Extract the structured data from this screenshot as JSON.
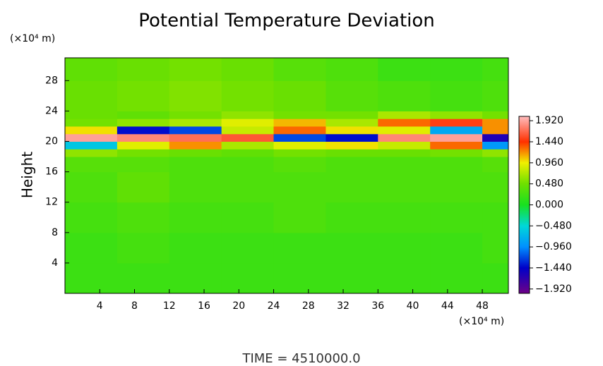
{
  "chart_data": {
    "type": "heatmap",
    "title": "Potential Temperature Deviation",
    "y_label": "Height",
    "y_unit": "(×10⁴ m)",
    "x_unit": "(×10⁴ m)",
    "footer": "TIME = 4510000.0",
    "xlim": [
      0,
      51
    ],
    "ylim": [
      0,
      31
    ],
    "xticks": [
      4,
      8,
      12,
      16,
      20,
      24,
      28,
      32,
      36,
      40,
      44,
      48
    ],
    "yticks": [
      4,
      8,
      12,
      16,
      20,
      24,
      28
    ],
    "x": [
      0,
      6,
      12,
      18,
      24,
      30,
      36,
      42,
      48,
      51
    ],
    "y": [
      0,
      4,
      8,
      12,
      16,
      18,
      19,
      20,
      21,
      22,
      23,
      24,
      28,
      31
    ],
    "z": [
      [
        0.2,
        0.2,
        0.2,
        0.2,
        0.2,
        0.2,
        0.2,
        0.2,
        0.2
      ],
      [
        0.2,
        0.25,
        0.2,
        0.2,
        0.2,
        0.2,
        0.2,
        0.2,
        0.25
      ],
      [
        0.25,
        0.3,
        0.25,
        0.25,
        0.3,
        0.25,
        0.25,
        0.25,
        0.25
      ],
      [
        0.3,
        0.4,
        0.3,
        0.3,
        0.3,
        0.3,
        0.3,
        0.3,
        0.3
      ],
      [
        0.35,
        0.35,
        0.3,
        0.3,
        0.35,
        0.3,
        0.3,
        0.3,
        0.35
      ],
      [
        0.6,
        0.5,
        0.45,
        0.4,
        0.5,
        0.45,
        0.45,
        0.5,
        0.6
      ],
      [
        -0.6,
        0.9,
        1.2,
        0.7,
        0.9,
        1.0,
        0.8,
        1.3,
        -0.9
      ],
      [
        1.9,
        1.8,
        1.7,
        1.6,
        -1.2,
        -1.4,
        1.8,
        1.9,
        -1.6
      ],
      [
        1.0,
        -1.4,
        -1.2,
        0.8,
        1.3,
        1.0,
        0.9,
        -0.8,
        1.2
      ],
      [
        0.5,
        0.6,
        0.7,
        0.9,
        1.1,
        0.7,
        1.3,
        1.5,
        1.2
      ],
      [
        0.45,
        0.4,
        0.5,
        0.6,
        0.5,
        0.5,
        0.7,
        0.6,
        0.5
      ],
      [
        0.45,
        0.5,
        0.55,
        0.5,
        0.45,
        0.35,
        0.3,
        0.25,
        0.3
      ],
      [
        0.4,
        0.45,
        0.5,
        0.45,
        0.35,
        0.3,
        0.2,
        0.2,
        0.25
      ]
    ],
    "clim": [
      -2.02,
      2.02
    ],
    "colormap": [
      {
        "value": -2,
        "color": "#6a008a"
      },
      {
        "value": -1.44,
        "color": "#0000c8"
      },
      {
        "value": -0.96,
        "color": "#0090ff"
      },
      {
        "value": -0.48,
        "color": "#00d8d8"
      },
      {
        "value": 0,
        "color": "#18e020"
      },
      {
        "value": 0.48,
        "color": "#6ee000"
      },
      {
        "value": 0.96,
        "color": "#f0f000"
      },
      {
        "value": 1.44,
        "color": "#ff3000"
      },
      {
        "value": 2,
        "color": "#ffb8b8"
      }
    ],
    "cticks": [
      {
        "value": 1.92,
        "label": "1.920"
      },
      {
        "value": 1.44,
        "label": "1.440"
      },
      {
        "value": 0.96,
        "label": "0.960"
      },
      {
        "value": 0.48,
        "label": "0.480"
      },
      {
        "value": 0,
        "label": "0.000"
      },
      {
        "value": -0.48,
        "label": "−0.480"
      },
      {
        "value": -0.96,
        "label": "−0.960"
      },
      {
        "value": -1.44,
        "label": "−1.440"
      },
      {
        "value": -1.92,
        "label": "−1.920"
      }
    ]
  }
}
